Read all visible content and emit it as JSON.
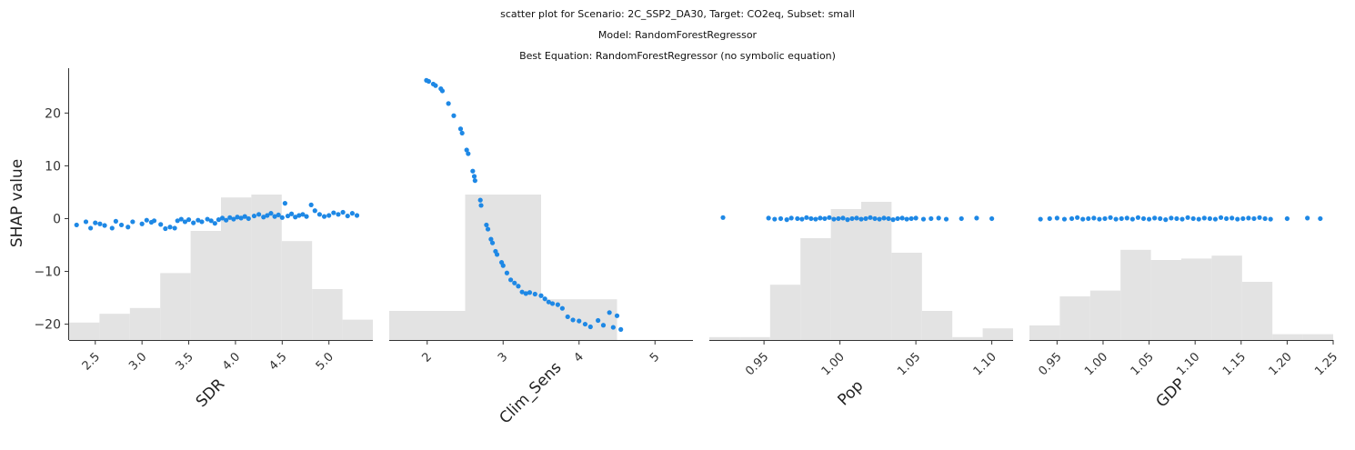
{
  "figure": {
    "title_lines": [
      "scatter plot for Scenario: 2C_SSP2_DA30, Target: CO2eq, Subset: small",
      "Model: RandomForestRegressor",
      "Best Equation: RandomForestRegressor (no symbolic equation)"
    ]
  },
  "colors": {
    "points": "#1e88e5",
    "histogram": "#e3e3e3",
    "axis": "#333333"
  },
  "chart_data": [
    {
      "type": "scatter",
      "xlabel": "SDR",
      "ylabel": "SHAP value",
      "xlim": [
        2.22,
        5.47
      ],
      "ylim": [
        -23,
        28.5
      ],
      "xticks": [
        2.5,
        3.0,
        3.5,
        4.0,
        4.5,
        5.0
      ],
      "xtick_labels": [
        "2.5",
        "3.0",
        "3.5",
        "4.0",
        "4.5",
        "5.0"
      ],
      "yticks": [
        -20,
        -10,
        0,
        10,
        20
      ],
      "ytick_labels": [
        "−20",
        "−10",
        "0",
        "10",
        "20"
      ],
      "points": [
        [
          2.3,
          -1.2
        ],
        [
          2.4,
          -0.6
        ],
        [
          2.45,
          -1.8
        ],
        [
          2.5,
          -0.8
        ],
        [
          2.55,
          -1.0
        ],
        [
          2.6,
          -1.3
        ],
        [
          2.68,
          -1.8
        ],
        [
          2.72,
          -0.5
        ],
        [
          2.78,
          -1.2
        ],
        [
          2.85,
          -1.6
        ],
        [
          2.9,
          -0.6
        ],
        [
          3.0,
          -1.0
        ],
        [
          3.05,
          -0.3
        ],
        [
          3.1,
          -0.7
        ],
        [
          3.13,
          -0.4
        ],
        [
          3.2,
          -1.1
        ],
        [
          3.25,
          -1.9
        ],
        [
          3.3,
          -1.6
        ],
        [
          3.35,
          -1.8
        ],
        [
          3.38,
          -0.4
        ],
        [
          3.42,
          -0.1
        ],
        [
          3.46,
          -0.6
        ],
        [
          3.5,
          -0.2
        ],
        [
          3.55,
          -0.8
        ],
        [
          3.6,
          -0.3
        ],
        [
          3.64,
          -0.6
        ],
        [
          3.7,
          -0.1
        ],
        [
          3.74,
          -0.4
        ],
        [
          3.78,
          -0.9
        ],
        [
          3.82,
          -0.2
        ],
        [
          3.86,
          0.1
        ],
        [
          3.9,
          -0.3
        ],
        [
          3.94,
          0.2
        ],
        [
          3.98,
          -0.1
        ],
        [
          4.02,
          0.3
        ],
        [
          4.06,
          0.1
        ],
        [
          4.1,
          0.4
        ],
        [
          4.14,
          0.0
        ],
        [
          4.2,
          0.5
        ],
        [
          4.25,
          0.8
        ],
        [
          4.3,
          0.3
        ],
        [
          4.34,
          0.6
        ],
        [
          4.38,
          1.0
        ],
        [
          4.42,
          0.4
        ],
        [
          4.46,
          0.7
        ],
        [
          4.5,
          0.2
        ],
        [
          4.53,
          2.9
        ],
        [
          4.56,
          0.5
        ],
        [
          4.6,
          0.9
        ],
        [
          4.64,
          0.3
        ],
        [
          4.68,
          0.6
        ],
        [
          4.72,
          0.8
        ],
        [
          4.76,
          0.4
        ],
        [
          4.81,
          2.6
        ],
        [
          4.85,
          1.5
        ],
        [
          4.9,
          0.8
        ],
        [
          4.95,
          0.4
        ],
        [
          5.0,
          0.6
        ],
        [
          5.05,
          1.1
        ],
        [
          5.1,
          0.8
        ],
        [
          5.15,
          1.2
        ],
        [
          5.2,
          0.5
        ],
        [
          5.25,
          1.0
        ],
        [
          5.3,
          0.6
        ]
      ],
      "histogram": {
        "edges": [
          2.22,
          2.545,
          2.87,
          3.195,
          3.52,
          3.845,
          4.17,
          4.495,
          4.82,
          5.145,
          5.47
        ],
        "heights": [
          0.12,
          0.18,
          0.22,
          0.46,
          0.75,
          0.98,
          1.0,
          0.68,
          0.35,
          0.14
        ]
      }
    },
    {
      "type": "scatter",
      "xlabel": "Clim_Sens",
      "ylabel": "",
      "xlim": [
        1.5,
        5.5
      ],
      "ylim": [
        -23,
        28.5
      ],
      "xticks": [
        2,
        3,
        4,
        5
      ],
      "xtick_labels": [
        "2",
        "3",
        "4",
        "5"
      ],
      "yticks": [],
      "ytick_labels": [],
      "points": [
        [
          1.99,
          26.2
        ],
        [
          2.02,
          26.0
        ],
        [
          2.08,
          25.5
        ],
        [
          2.11,
          25.2
        ],
        [
          2.18,
          24.6
        ],
        [
          2.2,
          24.2
        ],
        [
          2.28,
          21.8
        ],
        [
          2.35,
          19.5
        ],
        [
          2.44,
          17.0
        ],
        [
          2.46,
          16.2
        ],
        [
          2.52,
          13.0
        ],
        [
          2.54,
          12.3
        ],
        [
          2.6,
          9.0
        ],
        [
          2.62,
          8.0
        ],
        [
          2.63,
          7.2
        ],
        [
          2.7,
          3.5
        ],
        [
          2.71,
          2.5
        ],
        [
          2.78,
          -1.2
        ],
        [
          2.8,
          -2.0
        ],
        [
          2.84,
          -3.9
        ],
        [
          2.86,
          -4.6
        ],
        [
          2.9,
          -6.2
        ],
        [
          2.92,
          -6.8
        ],
        [
          2.98,
          -8.3
        ],
        [
          3.0,
          -8.9
        ],
        [
          3.05,
          -10.3
        ],
        [
          3.1,
          -11.6
        ],
        [
          3.15,
          -12.2
        ],
        [
          3.2,
          -12.8
        ],
        [
          3.25,
          -13.9
        ],
        [
          3.3,
          -14.2
        ],
        [
          3.35,
          -14.0
        ],
        [
          3.42,
          -14.3
        ],
        [
          3.5,
          -14.6
        ],
        [
          3.55,
          -15.2
        ],
        [
          3.6,
          -15.8
        ],
        [
          3.65,
          -16.1
        ],
        [
          3.72,
          -16.3
        ],
        [
          3.78,
          -17.0
        ],
        [
          3.85,
          -18.6
        ],
        [
          3.92,
          -19.2
        ],
        [
          4.0,
          -19.4
        ],
        [
          4.08,
          -20.0
        ],
        [
          4.15,
          -20.5
        ],
        [
          4.25,
          -19.3
        ],
        [
          4.32,
          -20.2
        ],
        [
          4.4,
          -17.8
        ],
        [
          4.45,
          -20.6
        ],
        [
          4.5,
          -18.4
        ],
        [
          4.55,
          -21.0
        ]
      ],
      "histogram": {
        "edges": [
          1.5,
          2.5,
          3.5,
          4.5,
          5.5
        ],
        "heights": [
          0.2,
          1.0,
          0.28,
          0.0
        ]
      }
    },
    {
      "type": "scatter",
      "xlabel": "Pop",
      "ylabel": "",
      "xlim": [
        0.914,
        1.114
      ],
      "ylim": [
        -23,
        28.5
      ],
      "xticks": [
        0.95,
        1.0,
        1.05,
        1.1
      ],
      "xtick_labels": [
        "0.95",
        "1.00",
        "1.05",
        "1.10"
      ],
      "yticks": [],
      "ytick_labels": [],
      "points": [
        [
          0.923,
          0.2
        ],
        [
          0.953,
          0.1
        ],
        [
          0.957,
          -0.1
        ],
        [
          0.961,
          0.0
        ],
        [
          0.965,
          -0.2
        ],
        [
          0.968,
          0.1
        ],
        [
          0.972,
          0.0
        ],
        [
          0.975,
          -0.1
        ],
        [
          0.978,
          0.2
        ],
        [
          0.981,
          0.0
        ],
        [
          0.984,
          -0.1
        ],
        [
          0.987,
          0.1
        ],
        [
          0.99,
          0.0
        ],
        [
          0.993,
          0.2
        ],
        [
          0.996,
          -0.1
        ],
        [
          0.999,
          0.0
        ],
        [
          1.002,
          0.1
        ],
        [
          1.005,
          -0.2
        ],
        [
          1.008,
          0.0
        ],
        [
          1.011,
          0.1
        ],
        [
          1.014,
          -0.1
        ],
        [
          1.017,
          0.0
        ],
        [
          1.02,
          0.2
        ],
        [
          1.023,
          0.0
        ],
        [
          1.026,
          -0.1
        ],
        [
          1.029,
          0.1
        ],
        [
          1.032,
          0.0
        ],
        [
          1.035,
          -0.2
        ],
        [
          1.038,
          0.0
        ],
        [
          1.041,
          0.1
        ],
        [
          1.044,
          -0.1
        ],
        [
          1.047,
          0.0
        ],
        [
          1.05,
          0.1
        ],
        [
          1.055,
          -0.1
        ],
        [
          1.06,
          0.0
        ],
        [
          1.065,
          0.1
        ],
        [
          1.07,
          -0.1
        ],
        [
          1.08,
          0.0
        ],
        [
          1.09,
          0.1
        ],
        [
          1.1,
          0.0
        ]
      ],
      "histogram": {
        "edges": [
          0.914,
          0.934,
          0.954,
          0.974,
          0.994,
          1.014,
          1.034,
          1.054,
          1.074,
          1.094,
          1.114
        ],
        "heights": [
          0.02,
          0.02,
          0.38,
          0.7,
          0.9,
          0.95,
          0.6,
          0.2,
          0.02,
          0.08
        ]
      }
    },
    {
      "type": "scatter",
      "xlabel": "GDP",
      "ylabel": "",
      "xlim": [
        0.92,
        1.25
      ],
      "ylim": [
        -23,
        28.5
      ],
      "xticks": [
        0.95,
        1.0,
        1.05,
        1.1,
        1.15,
        1.2,
        1.25
      ],
      "xtick_labels": [
        "0.95",
        "1.00",
        "1.05",
        "1.10",
        "1.15",
        "1.20",
        "1.25"
      ],
      "yticks": [],
      "ytick_labels": [],
      "points": [
        [
          0.932,
          -0.1
        ],
        [
          0.942,
          0.0
        ],
        [
          0.95,
          0.1
        ],
        [
          0.958,
          -0.1
        ],
        [
          0.966,
          0.0
        ],
        [
          0.972,
          0.2
        ],
        [
          0.978,
          -0.1
        ],
        [
          0.984,
          0.0
        ],
        [
          0.99,
          0.1
        ],
        [
          0.996,
          -0.1
        ],
        [
          1.002,
          0.0
        ],
        [
          1.008,
          0.2
        ],
        [
          1.014,
          -0.1
        ],
        [
          1.02,
          0.0
        ],
        [
          1.026,
          0.1
        ],
        [
          1.032,
          -0.1
        ],
        [
          1.038,
          0.2
        ],
        [
          1.044,
          0.0
        ],
        [
          1.05,
          -0.1
        ],
        [
          1.056,
          0.1
        ],
        [
          1.062,
          0.0
        ],
        [
          1.068,
          -0.2
        ],
        [
          1.074,
          0.1
        ],
        [
          1.08,
          0.0
        ],
        [
          1.086,
          -0.1
        ],
        [
          1.092,
          0.2
        ],
        [
          1.098,
          0.0
        ],
        [
          1.104,
          -0.1
        ],
        [
          1.11,
          0.1
        ],
        [
          1.116,
          0.0
        ],
        [
          1.122,
          -0.1
        ],
        [
          1.128,
          0.2
        ],
        [
          1.134,
          0.0
        ],
        [
          1.14,
          0.1
        ],
        [
          1.146,
          -0.1
        ],
        [
          1.152,
          0.0
        ],
        [
          1.158,
          0.1
        ],
        [
          1.164,
          0.0
        ],
        [
          1.17,
          0.2
        ],
        [
          1.176,
          0.0
        ],
        [
          1.182,
          -0.1
        ],
        [
          1.2,
          0.0
        ],
        [
          1.222,
          0.1
        ],
        [
          1.236,
          0.0
        ]
      ],
      "histogram": {
        "edges": [
          0.92,
          0.953,
          0.986,
          1.019,
          1.052,
          1.085,
          1.118,
          1.151,
          1.184,
          1.217,
          1.25
        ],
        "heights": [
          0.1,
          0.3,
          0.34,
          0.62,
          0.55,
          0.56,
          0.58,
          0.4,
          0.04,
          0.04
        ]
      }
    }
  ]
}
